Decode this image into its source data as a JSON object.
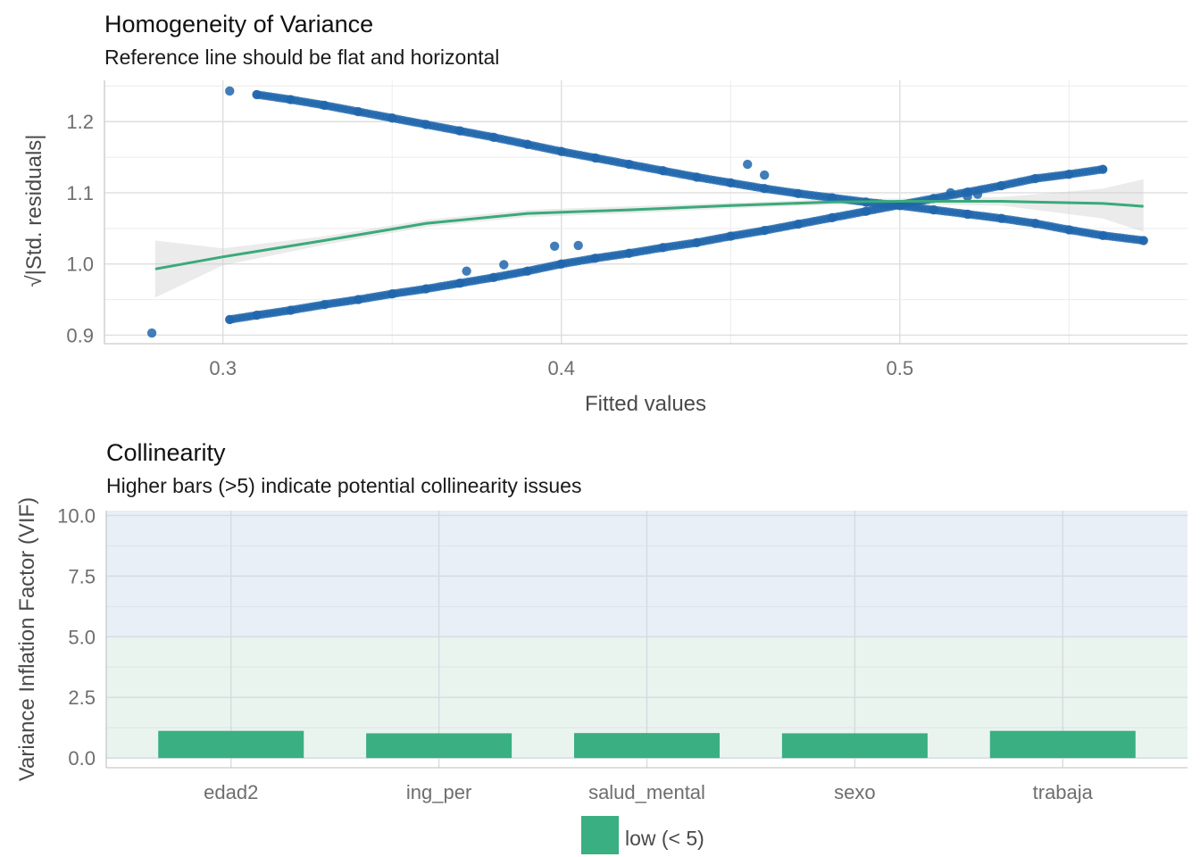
{
  "chart_data": [
    {
      "type": "scatter",
      "title": "Homogeneity of Variance",
      "subtitle": "Reference line should be flat and horizontal",
      "xlabel": "Fitted values",
      "ylabel": "√|Std. residuals|",
      "xlim": [
        0.265,
        0.585
      ],
      "ylim": [
        0.888,
        1.258
      ],
      "xticks": [
        0.3,
        0.4,
        0.5
      ],
      "xtick_labels": [
        "0.3",
        "0.4",
        "0.5"
      ],
      "yticks": [
        0.9,
        1.0,
        1.1,
        1.2
      ],
      "ytick_labels": [
        "0.9",
        "1.0",
        "1.1",
        "1.2"
      ],
      "grid": true,
      "point_color": "#2166ac",
      "line_color": "#3aaa7a",
      "band_color": "#cccccc",
      "series": [
        {
          "kind": "points",
          "x": [
            0.279,
            0.302,
            0.31,
            0.32,
            0.33,
            0.34,
            0.35,
            0.36,
            0.37,
            0.38,
            0.39,
            0.4,
            0.41,
            0.42,
            0.43,
            0.44,
            0.45,
            0.46,
            0.47,
            0.48,
            0.49,
            0.5,
            0.51,
            0.52,
            0.53,
            0.54,
            0.55,
            0.56
          ],
          "y": [
            0.903,
            0.922,
            0.928,
            0.935,
            0.943,
            0.95,
            0.958,
            0.965,
            0.973,
            0.981,
            0.99,
            1.0,
            1.008,
            1.015,
            1.023,
            1.03,
            1.039,
            1.047,
            1.056,
            1.065,
            1.074,
            1.083,
            1.092,
            1.101,
            1.11,
            1.12,
            1.126,
            1.133
          ]
        },
        {
          "kind": "points",
          "x": [
            0.302,
            0.31,
            0.32,
            0.33,
            0.34,
            0.35,
            0.36,
            0.37,
            0.38,
            0.39,
            0.4,
            0.41,
            0.42,
            0.43,
            0.44,
            0.45,
            0.46,
            0.47,
            0.48,
            0.49,
            0.5,
            0.51,
            0.52,
            0.53,
            0.54,
            0.55,
            0.56,
            0.572
          ],
          "y": [
            1.243,
            1.238,
            1.231,
            1.223,
            1.214,
            1.205,
            1.196,
            1.187,
            1.178,
            1.168,
            1.158,
            1.149,
            1.14,
            1.131,
            1.122,
            1.114,
            1.106,
            1.099,
            1.093,
            1.087,
            1.082,
            1.076,
            1.07,
            1.064,
            1.057,
            1.048,
            1.04,
            1.033
          ]
        },
        {
          "kind": "points",
          "x": [
            0.372,
            0.383,
            0.398,
            0.405,
            0.455,
            0.46,
            0.515,
            0.52,
            0.523
          ],
          "y": [
            0.99,
            0.999,
            1.025,
            1.026,
            1.14,
            1.125,
            1.1,
            1.095,
            1.098
          ]
        },
        {
          "kind": "loess",
          "x": [
            0.28,
            0.3,
            0.33,
            0.36,
            0.39,
            0.42,
            0.45,
            0.48,
            0.5,
            0.53,
            0.56,
            0.572
          ],
          "y": [
            0.993,
            1.01,
            1.033,
            1.057,
            1.071,
            1.076,
            1.082,
            1.087,
            1.088,
            1.088,
            1.085,
            1.081
          ],
          "lower": [
            0.953,
            0.998,
            1.027,
            1.052,
            1.066,
            1.071,
            1.078,
            1.083,
            1.084,
            1.082,
            1.064,
            1.045
          ],
          "upper": [
            1.033,
            1.022,
            1.039,
            1.062,
            1.076,
            1.081,
            1.086,
            1.091,
            1.092,
            1.094,
            1.106,
            1.119
          ]
        }
      ]
    },
    {
      "type": "bar",
      "title": "Collinearity",
      "subtitle": "Higher bars (>5) indicate potential collinearity issues",
      "xlabel": "",
      "ylabel": "Variance Inflation Factor (VIF)",
      "ylim": [
        -0.4,
        10.2
      ],
      "yticks": [
        0,
        2.5,
        5,
        7.5,
        10
      ],
      "ytick_labels": [
        "0.0",
        "2.5",
        "5.0",
        "7.5",
        "10.0"
      ],
      "categories": [
        "edad2",
        "ing_per",
        "salud_mental",
        "sexo",
        "trabaja"
      ],
      "values": [
        1.12,
        1.02,
        1.03,
        1.02,
        1.12
      ],
      "bar_color": "#3aaf82",
      "zones": [
        {
          "from": 0,
          "to": 5,
          "color": "#e9f4ef"
        },
        {
          "from": 5,
          "to": 10.2,
          "color": "#e8eff6"
        }
      ],
      "legend": {
        "position": "bottom",
        "entries": [
          {
            "label": "low (< 5)",
            "color": "#3aaf82"
          }
        ]
      }
    }
  ]
}
